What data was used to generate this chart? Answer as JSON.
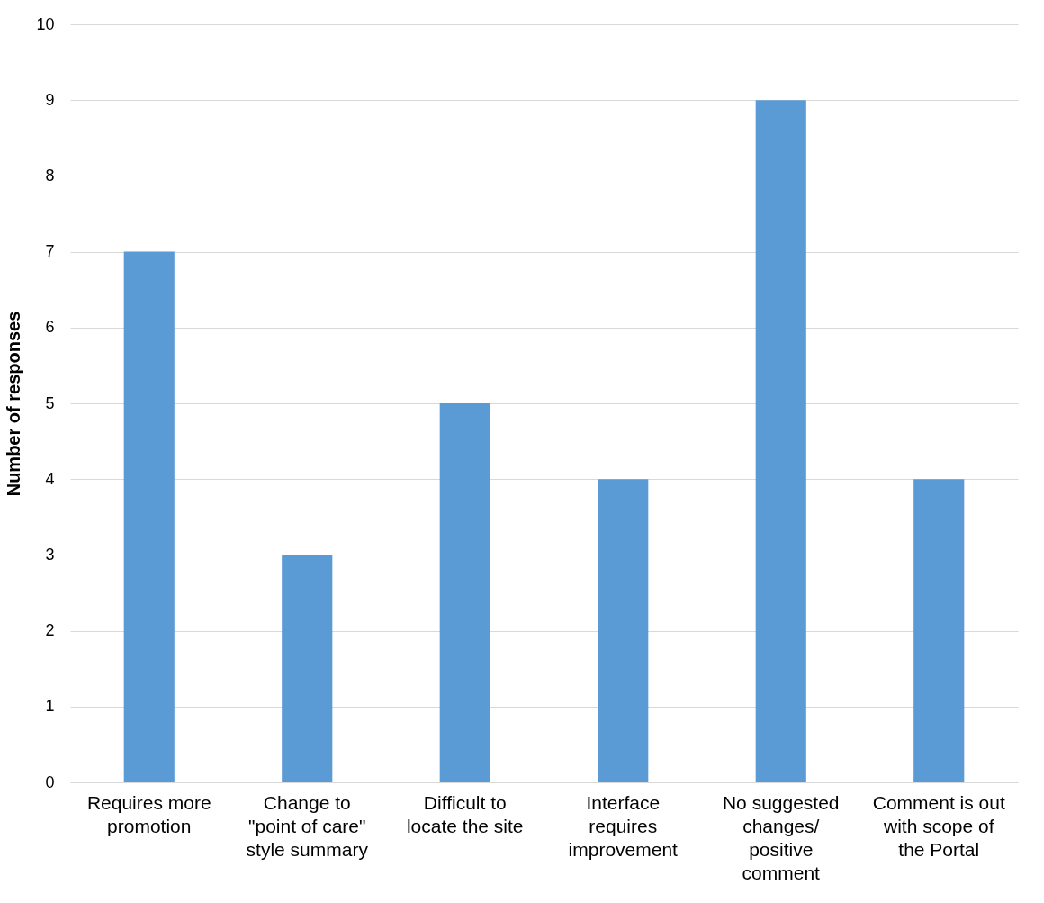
{
  "chart_data": {
    "type": "bar",
    "ylabel": "Number of responses",
    "categories": [
      "Requires more promotion",
      "Change to \"point of care\" style summary",
      "Difficult to locate the site",
      "Interface requires improvement",
      "No suggested changes/ positive comment",
      "Comment is out with scope of the Portal"
    ],
    "values": [
      7,
      3,
      5,
      4,
      9,
      4
    ],
    "color": "#5b9bd5",
    "ylim": [
      0,
      10
    ],
    "yticks": [
      0,
      1,
      2,
      3,
      4,
      5,
      6,
      7,
      8,
      9,
      10
    ],
    "grid": "y"
  }
}
